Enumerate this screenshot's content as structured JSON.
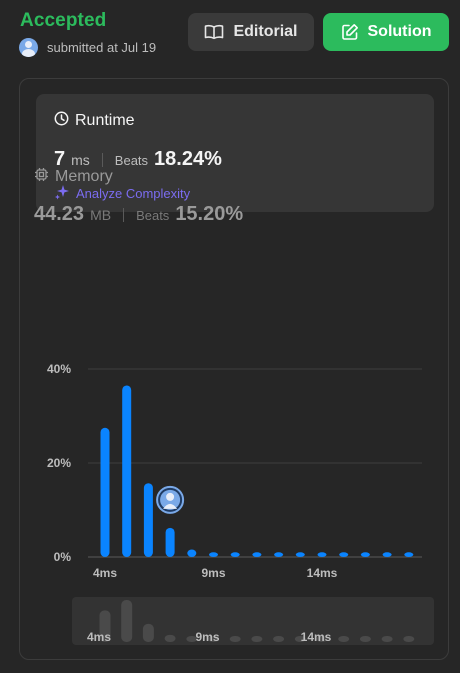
{
  "submission": {
    "status": "Accepted",
    "submitted_text": "submitted at Jul 19"
  },
  "buttons": {
    "editorial_label": "Editorial",
    "solution_label": "Solution"
  },
  "runtime": {
    "title": "Runtime",
    "value": "7",
    "unit": "ms",
    "beats_label": "Beats",
    "beats_value": "18.24%",
    "analyze_label": "Analyze Complexity"
  },
  "memory": {
    "title": "Memory",
    "value": "44.23",
    "unit": "MB",
    "beats_label": "Beats",
    "beats_value": "15.20%"
  },
  "colors": {
    "accepted": "#2cbb5d",
    "bar": "#0a84ff",
    "mini_bar": "#4a4a4a",
    "analyze": "#7b6cf0"
  },
  "chart_data": {
    "type": "bar",
    "title": "",
    "xlabel": "",
    "ylabel": "",
    "ylim": [
      0,
      40
    ],
    "yticks": [
      "40%",
      "20%",
      "0%"
    ],
    "ytick_values": [
      40,
      20,
      0
    ],
    "xticks": [
      "4ms",
      "9ms",
      "14ms"
    ],
    "xtick_bins": [
      0,
      5,
      10
    ],
    "values": [
      27.5,
      36.5,
      15.7,
      6.2,
      1.6,
      1.0,
      1.0,
      1.0,
      1.0,
      1.0,
      1.0,
      1.0,
      1.0,
      1.0,
      1.0
    ],
    "mini_values": [
      27.5,
      36.5,
      15.7,
      6.2,
      1.6,
      1.0,
      1.0,
      1.0,
      1.0,
      1.0,
      1.0,
      1.0,
      1.0,
      1.0,
      1.0
    ],
    "marker_bin": 3,
    "mini_xticks": [
      "4ms",
      "9ms",
      "14ms"
    ]
  }
}
